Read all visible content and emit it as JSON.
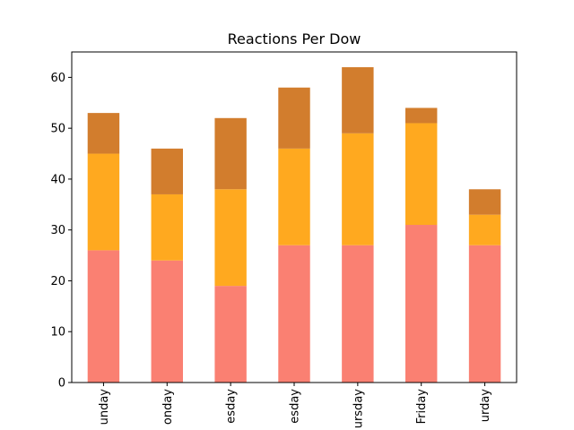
{
  "chart_data": {
    "type": "bar",
    "stacked": true,
    "title": "Reactions Per Dow",
    "xlabel": "",
    "ylabel": "",
    "categories": [
      "unday",
      "onday",
      "esday",
      "esday",
      "ursday",
      "Friday",
      "urday"
    ],
    "series": [
      {
        "values": [
          26,
          24,
          19,
          27,
          27,
          31,
          27
        ],
        "color": "#fa8072"
      },
      {
        "values": [
          19,
          13,
          19,
          19,
          22,
          20,
          6
        ],
        "color": "#ffa91f"
      },
      {
        "values": [
          8,
          9,
          14,
          12,
          13,
          3,
          5
        ],
        "color": "#d27d2d"
      }
    ],
    "ylim": [
      0,
      65
    ],
    "yticks": [
      0,
      10,
      20,
      30,
      40,
      50,
      60
    ],
    "grid": false,
    "legend": "none"
  }
}
